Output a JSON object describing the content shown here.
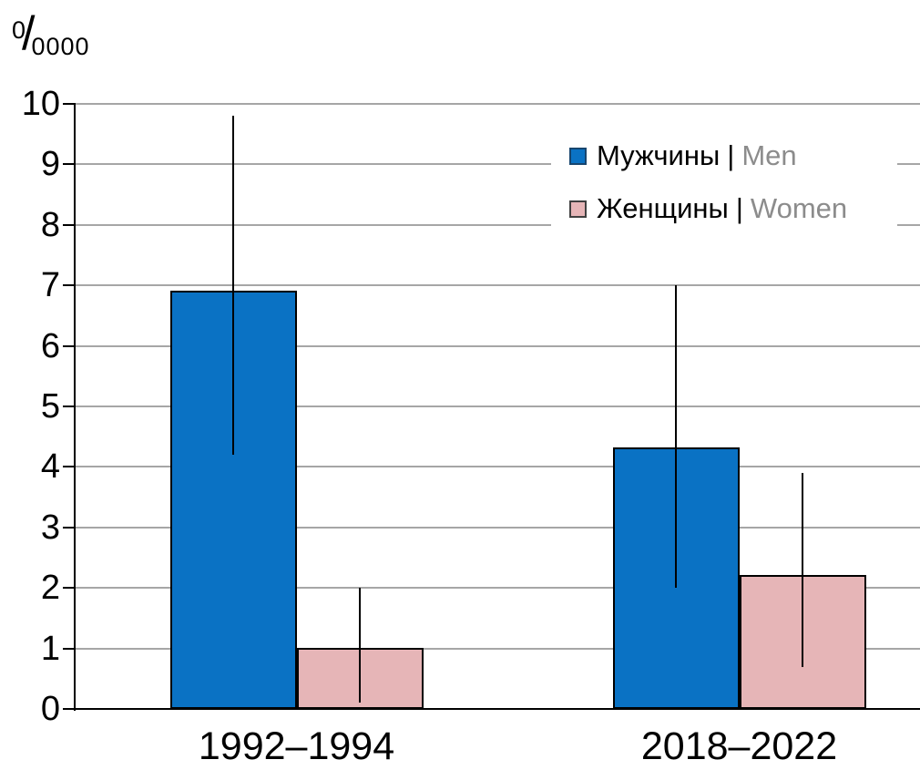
{
  "chart_data": {
    "type": "bar",
    "unit": {
      "sup": "0",
      "slash": "/",
      "sub": "0000"
    },
    "categories": [
      "1992–1994",
      "2018–2022"
    ],
    "series": [
      {
        "name_ru": "Мужчины",
        "separator": "|",
        "name_en": "Men",
        "color": "#0a72c4",
        "swatch_border": "#17456e",
        "values": [
          6.9,
          4.3
        ],
        "ci_low": [
          4.2,
          2.0
        ],
        "ci_high": [
          9.8,
          7.0
        ]
      },
      {
        "name_ru": "Женщины",
        "separator": "|",
        "name_en": "Women",
        "color": "#e6b5b7",
        "swatch_border": "#404040",
        "values": [
          1.0,
          2.2
        ],
        "ci_low": [
          0.1,
          0.7
        ],
        "ci_high": [
          2.0,
          3.9
        ]
      }
    ],
    "ylim": [
      0,
      10
    ],
    "yticks": [
      0,
      1,
      2,
      3,
      4,
      5,
      6,
      7,
      8,
      9,
      10
    ],
    "grid": true,
    "legend_position": "top-right",
    "error_bars": true,
    "colors": {
      "grid": "#a6a6a6",
      "axis": "#000000",
      "secondary_text": "#8c8c8c"
    }
  }
}
